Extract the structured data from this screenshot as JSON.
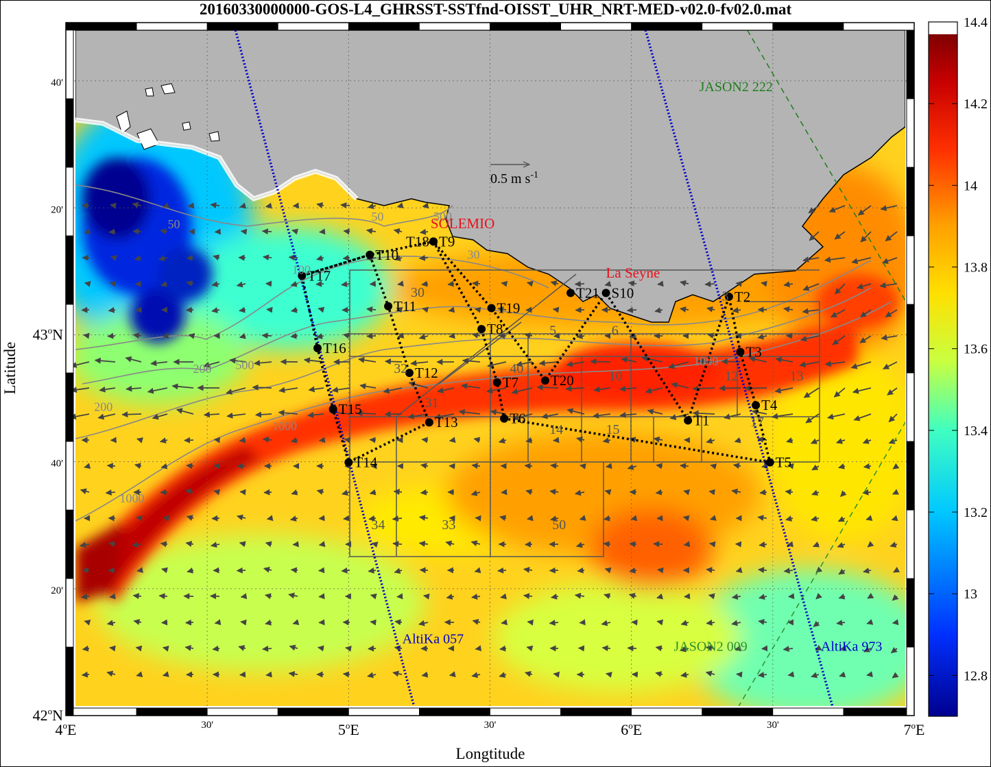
{
  "title": "20160330000000-GOS-L4_GHRSST-SSTfnd-OISST_UHR_NRT-MED-v02.0-fv02.0.mat",
  "xlabel": "Longtitude",
  "ylabel": "Latitude",
  "x_ticks": [
    {
      "lon": 4.0,
      "label": "4",
      "suffix": "E",
      "major": true
    },
    {
      "lon": 4.5,
      "label": "30'",
      "major": false
    },
    {
      "lon": 5.0,
      "label": "5",
      "suffix": "E",
      "major": true
    },
    {
      "lon": 5.5,
      "label": "30'",
      "major": false
    },
    {
      "lon": 6.0,
      "label": "6",
      "suffix": "E",
      "major": true
    },
    {
      "lon": 6.5,
      "label": "30'",
      "major": false
    },
    {
      "lon": 7.0,
      "label": "7",
      "suffix": "E",
      "major": true
    }
  ],
  "y_ticks": [
    {
      "lat": 42.0,
      "label": "42",
      "suffix": "N",
      "major": true
    },
    {
      "lat": 42.3333,
      "label": "20'",
      "major": false
    },
    {
      "lat": 42.6667,
      "label": "40'",
      "major": false
    },
    {
      "lat": 43.0,
      "label": "43",
      "suffix": "N",
      "major": true
    },
    {
      "lat": 43.3333,
      "label": "20'",
      "major": false
    },
    {
      "lat": 43.6667,
      "label": "40'",
      "major": false
    }
  ],
  "colorbar": {
    "min": 12.7,
    "max": 14.4,
    "ticks": [
      "12.8",
      "13",
      "13.2",
      "13.4",
      "13.6",
      "13.8",
      "14",
      "14.2",
      "14.4"
    ],
    "tick_values": [
      12.8,
      13.0,
      13.2,
      13.4,
      13.6,
      13.8,
      14.0,
      14.2,
      14.4
    ]
  },
  "scale_arrow": {
    "label": "0.5 m s",
    "superscript": "-1"
  },
  "place_labels": [
    {
      "text": "SOLEMIO",
      "lon": 5.29,
      "lat": 43.28,
      "color": "#e8111c"
    },
    {
      "text": "La Seyne",
      "lon": 5.91,
      "lat": 43.15,
      "color": "#e8111c"
    }
  ],
  "satellite_tracks": [
    {
      "name": "AltiKa 057",
      "color": "#0000c8",
      "style": "dotted",
      "label_lon": 5.19,
      "label_lat": 42.19,
      "points": [
        [
          4.6,
          43.8
        ],
        [
          5.24,
          42.0
        ]
      ]
    },
    {
      "name": "AltiKa 973",
      "color": "#0000c8",
      "style": "dotted",
      "label_lon": 6.67,
      "label_lat": 42.17,
      "points": [
        [
          6.05,
          43.8
        ],
        [
          6.72,
          42.0
        ]
      ]
    },
    {
      "name": "JASON2 222",
      "color": "#1e7d1e",
      "style": "dashed",
      "label_lon": 6.24,
      "label_lat": 43.64,
      "points": [
        [
          6.41,
          43.8
        ],
        [
          7.0,
          43.05
        ]
      ]
    },
    {
      "name": "JASON2 009",
      "color": "#2f8f2f",
      "style": "dashed",
      "label_lon": 6.15,
      "label_lat": 42.17,
      "points": [
        [
          6.36,
          42.0
        ],
        [
          7.0,
          42.81
        ]
      ]
    }
  ],
  "stations": [
    {
      "name": "T1",
      "lon": 6.2,
      "lat": 42.775
    },
    {
      "name": "T2",
      "lon": 6.345,
      "lat": 43.1
    },
    {
      "name": "T3",
      "lon": 6.385,
      "lat": 42.955
    },
    {
      "name": "T4",
      "lon": 6.44,
      "lat": 42.815
    },
    {
      "name": "T5",
      "lon": 6.49,
      "lat": 42.665
    },
    {
      "name": "T6",
      "lon": 5.55,
      "lat": 42.78
    },
    {
      "name": "T7",
      "lon": 5.525,
      "lat": 42.875
    },
    {
      "name": "T8",
      "lon": 5.47,
      "lat": 43.015
    },
    {
      "name": "T9",
      "lon": 5.3,
      "lat": 43.245
    },
    {
      "name": "T10",
      "lon": 5.075,
      "lat": 43.21
    },
    {
      "name": "T11",
      "lon": 5.14,
      "lat": 43.075
    },
    {
      "name": "T12",
      "lon": 5.215,
      "lat": 42.9
    },
    {
      "name": "T13",
      "lon": 5.285,
      "lat": 42.77
    },
    {
      "name": "T14",
      "lon": 5.0,
      "lat": 42.665
    },
    {
      "name": "T15",
      "lon": 4.945,
      "lat": 42.805
    },
    {
      "name": "T16",
      "lon": 4.89,
      "lat": 42.965
    },
    {
      "name": "T17",
      "lon": 4.835,
      "lat": 43.155
    },
    {
      "name": "T18",
      "lon": 5.3,
      "lat": 43.245,
      "dx": -48
    },
    {
      "name": "T19",
      "lon": 5.505,
      "lat": 43.07
    },
    {
      "name": "T20",
      "lon": 5.695,
      "lat": 42.88
    },
    {
      "name": "T21",
      "lon": 5.785,
      "lat": 43.11
    },
    {
      "name": "S10",
      "lon": 5.91,
      "lat": 43.11
    }
  ],
  "boxes": [
    {
      "label": "3",
      "lon": 6.32,
      "lat": 43.09
    },
    {
      "label": "5",
      "lon": 5.71,
      "lat": 43.0
    },
    {
      "label": "6",
      "lon": 5.93,
      "lat": 43.0
    },
    {
      "label": "10",
      "lon": 5.92,
      "lat": 42.88
    },
    {
      "label": "12",
      "lon": 6.33,
      "lat": 42.88
    },
    {
      "label": "13",
      "lon": 6.56,
      "lat": 42.88
    },
    {
      "label": "14",
      "lon": 5.71,
      "lat": 42.74
    },
    {
      "label": "15",
      "lon": 5.91,
      "lat": 42.74
    },
    {
      "label": "17",
      "lon": 6.42,
      "lat": 42.76
    },
    {
      "label": "30",
      "lon": 5.22,
      "lat": 43.1
    },
    {
      "label": "31",
      "lon": 5.27,
      "lat": 42.81
    },
    {
      "label": "32",
      "lon": 5.16,
      "lat": 42.9
    },
    {
      "label": "33",
      "lon": 5.33,
      "lat": 42.49
    },
    {
      "label": "34",
      "lon": 5.08,
      "lat": 42.49
    },
    {
      "label": "40",
      "lon": 5.57,
      "lat": 42.9
    },
    {
      "label": "50",
      "lon": 5.72,
      "lat": 42.49
    }
  ],
  "isobaths": [
    {
      "label": "50",
      "lon": 4.36,
      "lat": 43.28
    },
    {
      "label": "50",
      "lon": 5.08,
      "lat": 43.3
    },
    {
      "label": "100",
      "lon": 4.8,
      "lat": 43.16
    },
    {
      "label": "200",
      "lon": 4.45,
      "lat": 42.9
    },
    {
      "label": "200",
      "lon": 4.1,
      "lat": 42.8
    },
    {
      "label": "500",
      "lon": 4.6,
      "lat": 42.91
    },
    {
      "label": "1000",
      "lon": 4.73,
      "lat": 42.75
    },
    {
      "label": "1000",
      "lon": 4.19,
      "lat": 42.56
    },
    {
      "label": "1000",
      "lon": 6.22,
      "lat": 42.92
    },
    {
      "label": "500",
      "lon": 5.3,
      "lat": 43.3
    },
    {
      "label": "30",
      "lon": 5.42,
      "lat": 43.2
    }
  ]
}
